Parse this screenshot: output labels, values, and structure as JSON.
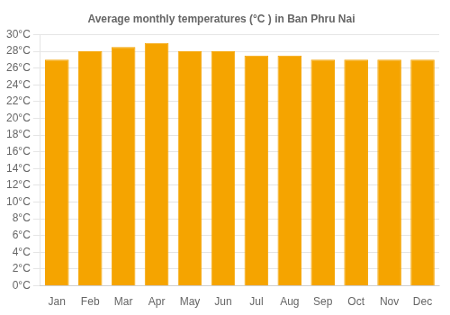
{
  "chart_data": {
    "type": "bar",
    "title": "Average monthly temperatures (°C ) in Ban Phru Nai",
    "categories": [
      "Jan",
      "Feb",
      "Mar",
      "Apr",
      "May",
      "Jun",
      "Jul",
      "Aug",
      "Sep",
      "Oct",
      "Nov",
      "Dec"
    ],
    "values": [
      27.0,
      28.0,
      28.5,
      29.0,
      28.0,
      28.0,
      27.5,
      27.5,
      27.0,
      27.0,
      27.0,
      27.0
    ],
    "color": "#F5A400",
    "ylim": [
      0,
      30
    ],
    "yticks": [
      {
        "value": 0,
        "label": "0°C"
      },
      {
        "value": 2,
        "label": "2°C"
      },
      {
        "value": 4,
        "label": "4°C"
      },
      {
        "value": 6,
        "label": "6°C"
      },
      {
        "value": 8,
        "label": "8°C"
      },
      {
        "value": 10,
        "label": "10°C"
      },
      {
        "value": 12,
        "label": "12°C"
      },
      {
        "value": 14,
        "label": "14°C"
      },
      {
        "value": 16,
        "label": "16°C"
      },
      {
        "value": 18,
        "label": "18°C"
      },
      {
        "value": 20,
        "label": "20°C"
      },
      {
        "value": 22,
        "label": "22°C"
      },
      {
        "value": 24,
        "label": "24°C"
      },
      {
        "value": 26,
        "label": "26°C"
      },
      {
        "value": 28,
        "label": "28°C"
      },
      {
        "value": 30,
        "label": "30°C"
      }
    ],
    "grid": true
  }
}
